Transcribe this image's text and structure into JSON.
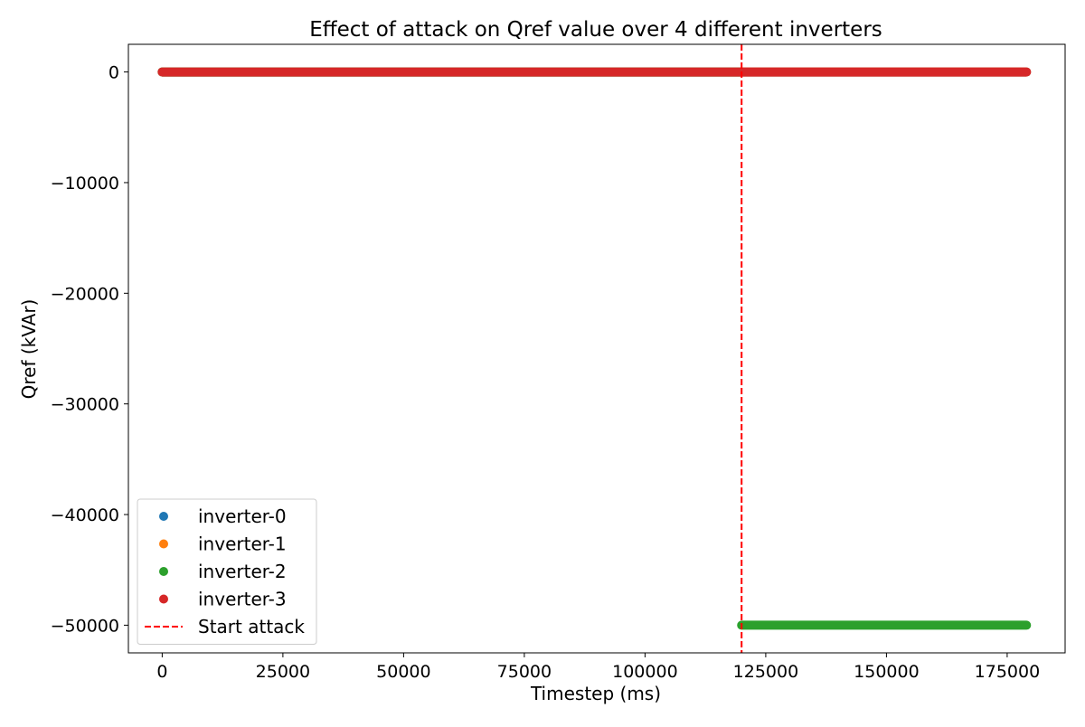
{
  "chart_data": {
    "type": "scatter",
    "title": "Effect of attack on Qref value over 4 different inverters",
    "xlabel": "Timestep (ms)",
    "ylabel": "Qref (kVAr)",
    "xlim": [
      -7000,
      187000
    ],
    "ylim": [
      -52500,
      2500
    ],
    "xticks": [
      0,
      25000,
      50000,
      75000,
      100000,
      125000,
      150000,
      175000
    ],
    "xtick_labels": [
      "0",
      "25000",
      "50000",
      "75000",
      "100000",
      "125000",
      "150000",
      "175000"
    ],
    "yticks": [
      0,
      -10000,
      -20000,
      -30000,
      -40000,
      -50000
    ],
    "ytick_labels": [
      "0",
      "−10000",
      "−20000",
      "−30000",
      "−40000",
      "−50000"
    ],
    "grid": false,
    "legend_position": "lower-left",
    "series": [
      {
        "name": "inverter-0",
        "color": "#1f77b4",
        "segments": [
          {
            "x_start": 0,
            "x_end": 179000,
            "y": 0
          }
        ]
      },
      {
        "name": "inverter-1",
        "color": "#ff7f0e",
        "segments": [
          {
            "x_start": 0,
            "x_end": 179000,
            "y": 0
          }
        ]
      },
      {
        "name": "inverter-2",
        "color": "#2ca02c",
        "segments": [
          {
            "x_start": 0,
            "x_end": 120000,
            "y": 0
          },
          {
            "x_start": 120000,
            "x_end": 179000,
            "y": -50000
          }
        ]
      },
      {
        "name": "inverter-3",
        "color": "#d62728",
        "segments": [
          {
            "x_start": 0,
            "x_end": 179000,
            "y": 0
          }
        ]
      }
    ],
    "reference_lines": [
      {
        "name": "Start attack",
        "orientation": "vertical",
        "x": 120000,
        "color": "#ff0000",
        "style": "dashed"
      }
    ]
  }
}
